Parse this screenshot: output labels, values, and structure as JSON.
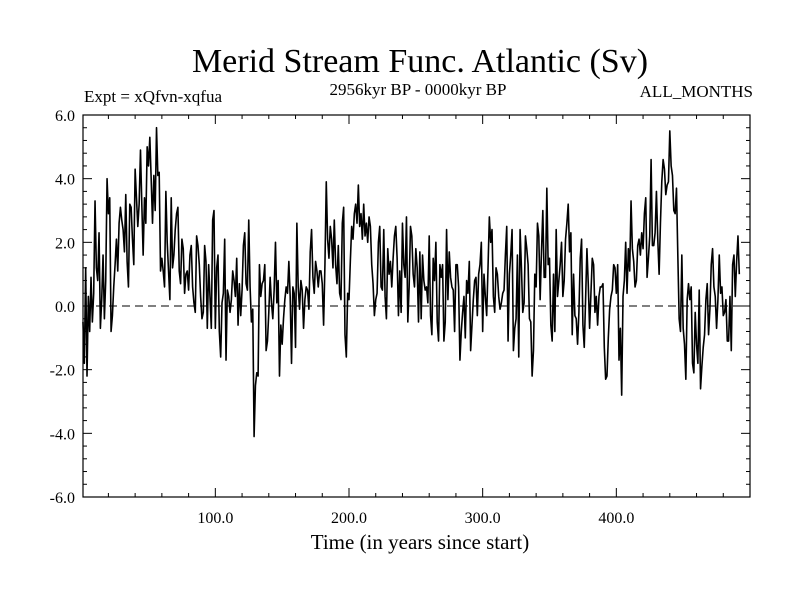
{
  "chart_data": {
    "type": "line",
    "title": "Merid Stream Func. Atlantic (Sv)",
    "subtitle_left": "Expt = xQfvn-xqfua",
    "subtitle_center": "2956kyr BP - 0000kyr BP",
    "subtitle_right": "ALL_MONTHS",
    "xlabel": "Time (in years since start)",
    "ylabel": "",
    "xlim": [
      1,
      500
    ],
    "ylim": [
      -6,
      6
    ],
    "x_ticks": [
      100,
      200,
      300,
      400
    ],
    "x_tick_labels": [
      "100.0",
      "200.0",
      "300.0",
      "400.0"
    ],
    "y_ticks": [
      -6,
      -4,
      -2,
      0,
      2,
      4,
      6
    ],
    "y_tick_labels": [
      "-6.0",
      "-4.0",
      "-2.0",
      "0.0",
      "2.0",
      "4.0",
      "6.0"
    ],
    "zero_line": true,
    "zero_line_style": "dashed",
    "series": [
      {
        "name": "Merid Stream Func. Atlantic",
        "x_start": 1,
        "x_step": 1,
        "values": [
          -0.5,
          -1.8,
          1.2,
          -2.2,
          0.3,
          -0.8,
          0.9,
          -0.5,
          0.4,
          3.3,
          1.2,
          0.8,
          2.3,
          -0.7,
          0.2,
          1.6,
          -0.4,
          0.8,
          4.0,
          2.9,
          3.4,
          -0.8,
          -0.3,
          0.6,
          1.3,
          2.1,
          1.1,
          2.6,
          3.1,
          2.7,
          2.4,
          1.7,
          3.5,
          1.4,
          0.6,
          3.2,
          3.1,
          2.1,
          1.3,
          4.3,
          3.4,
          2.5,
          3.2,
          4.9,
          3.2,
          1.6,
          3.4,
          2.6,
          5.0,
          4.4,
          5.3,
          4.0,
          2.6,
          4.1,
          3.0,
          5.6,
          4.1,
          4.2,
          1.1,
          1.5,
          1.1,
          0.6,
          3.6,
          2.0,
          1.1,
          0.2,
          3.4,
          1.2,
          1.6,
          2.4,
          2.9,
          3.1,
          1.1,
          0.7,
          2.1,
          1.8,
          0.4,
          1.0,
          1.1,
          0.5,
          1.6,
          1.9,
          0.6,
          0.1,
          -0.2,
          2.2,
          1.9,
          1.3,
          0.3,
          -0.4,
          -0.2,
          1.9,
          1.4,
          -0.7,
          1.3,
          0.3,
          -0.7,
          2.7,
          3.0,
          -0.7,
          1.2,
          1.6,
          -0.8,
          -1.6,
          0.1,
          0.4,
          2.1,
          -1.7,
          0.5,
          0.3,
          -0.2,
          0.2,
          1.1,
          0.8,
          0.3,
          1.5,
          -0.6,
          0.7,
          -0.3,
          0.5,
          1.9,
          2.3,
          0.7,
          0.5,
          2.7,
          0.6,
          -0.5,
          -0.1,
          -4.1,
          -2.5,
          -2.1,
          -2.2,
          1.3,
          0.3,
          0.7,
          0.8,
          1.3,
          -1.4,
          -1.1,
          -0.2,
          0.9,
          0.1,
          -0.4,
          0.5,
          2.0,
          0.1,
          0.8,
          -2.2,
          -0.6,
          -1.2,
          -0.4,
          0.2,
          0.6,
          0.4,
          1.4,
          0.3,
          -1.8,
          0.6,
          0.4,
          -1.3,
          2.6,
          0.6,
          -0.1,
          0.8,
          0.5,
          -0.7,
          0.2,
          0.6,
          0.5,
          -0.1,
          1.7,
          2.4,
          0.9,
          0.4,
          1.4,
          1.1,
          0.6,
          1.1,
          1.1,
          0.7,
          -0.6,
          1.3,
          3.9,
          2.1,
          1.5,
          2.5,
          2.1,
          1.2,
          2.7,
          1.3,
          0.7,
          1.9,
          0.4,
          0.2,
          2.6,
          3.1,
          -0.9,
          -1.6,
          0.4,
          0.2,
          1.4,
          2.5,
          2.1,
          2.9,
          3.2,
          2.6,
          3.8,
          2.5,
          2.9,
          2.1,
          3.2,
          2.2,
          2.6,
          2.0,
          2.8,
          2.5,
          1.3,
          0.7,
          -0.3,
          0.2,
          0.4,
          2.0,
          2.5,
          0.6,
          0.5,
          2.4,
          0.3,
          -0.4,
          1.8,
          1.0,
          1.4,
          0.6,
          1.5,
          2.2,
          2.5,
          1.5,
          -0.3,
          1.1,
          -0.2,
          2.6,
          1.3,
          0.9,
          2.8,
          -0.5,
          0.6,
          2.5,
          2.2,
          1.0,
          0.6,
          1.8,
          1.2,
          -0.5,
          1.7,
          -0.4,
          1.6,
          0.8,
          0.5,
          0.6,
          0.1,
          2.2,
          -0.3,
          -0.9,
          1.5,
          0.8,
          2.0,
          -0.5,
          -1.1,
          1.3,
          0.9,
          1.3,
          -1.1,
          -0.5,
          2.4,
          0.2,
          1.7,
          0.9,
          0.6,
          0.5,
          -0.8,
          1.3,
          1.3,
          0.6,
          -1.7,
          -0.8,
          -0.2,
          0.3,
          -1.0,
          0.8,
          0.4,
          1.4,
          -1.4,
          -0.6,
          0.2,
          0.8,
          0.9,
          -0.3,
          1.0,
          1.3,
          2.0,
          -0.8,
          1.0,
          0.3,
          -0.3,
          1.2,
          2.8,
          2.0,
          2.4,
          0.3,
          -0.2,
          1.2,
          1.0,
          0.3,
          -0.1,
          0.1,
          0.4,
          0.5,
          1.6,
          2.5,
          -1.1,
          1.0,
          1.6,
          2.4,
          -1.4,
          -0.7,
          -0.4,
          1.6,
          -1.6,
          2.4,
          1.2,
          -0.2,
          0.1,
          2.2,
          1.8,
          1.3,
          -0.4,
          -0.5,
          -2.2,
          -1.4,
          1.0,
          0.6,
          2.6,
          2.2,
          0.2,
          1.7,
          3.0,
          0.9,
          0.9,
          3.7,
          1.3,
          1.5,
          -0.6,
          -1.1,
          1.0,
          -0.8,
          2.4,
          0.3,
          0.8,
          1.3,
          2.0,
          0.3,
          0.8,
          2.1,
          2.6,
          3.2,
          1.7,
          2.3,
          -0.9,
          1.0,
          -0.3,
          -0.4,
          -1.2,
          -0.2,
          1.5,
          2.1,
          -0.6,
          -1.3,
          0.2,
          1.8,
          0.7,
          -0.7,
          0.4,
          1.5,
          1.3,
          -0.2,
          0.3,
          -0.6,
          0.3,
          0.6,
          0.6,
          0.7,
          -1.3,
          -2.3,
          -2.2,
          -1.0,
          -0.1,
          0.3,
          0.5,
          1.3,
          1.2,
          0.4,
          1.3,
          -1.7,
          -0.7,
          -2.8,
          0.3,
          0.8,
          2.0,
          0.4,
          1.8,
          1.1,
          3.3,
          1.8,
          1.4,
          0.6,
          0.8,
          1.9,
          2.1,
          1.6,
          2.3,
          1.8,
          2.9,
          3.4,
          0.9,
          1.5,
          2.2,
          4.6,
          1.9,
          1.9,
          2.3,
          3.6,
          2.1,
          1.0,
          2.6,
          3.9,
          4.6,
          4.3,
          3.5,
          3.8,
          3.9,
          5.5,
          4.4,
          4.1,
          3.0,
          2.9,
          3.7,
          1.6,
          -0.4,
          -0.8,
          1.6,
          -0.7,
          -1.2,
          -2.3,
          0.2,
          0.7,
          0.2,
          0.6,
          -1.8,
          -2.1,
          -0.2,
          -1.2,
          -1.8,
          0.5,
          -2.6,
          -1.9,
          -1.3,
          -0.9,
          0.2,
          0.7,
          -0.9,
          -0.1,
          1.3,
          1.8,
          0.6,
          0.3,
          -0.7,
          0.2,
          1.6,
          0.4,
          0.6,
          -0.3,
          -0.2,
          0.2,
          -1.1,
          -1.1,
          0.3,
          -1.4,
          1.3,
          1.6,
          0.3,
          1.4,
          2.2,
          1.0
        ]
      }
    ]
  }
}
